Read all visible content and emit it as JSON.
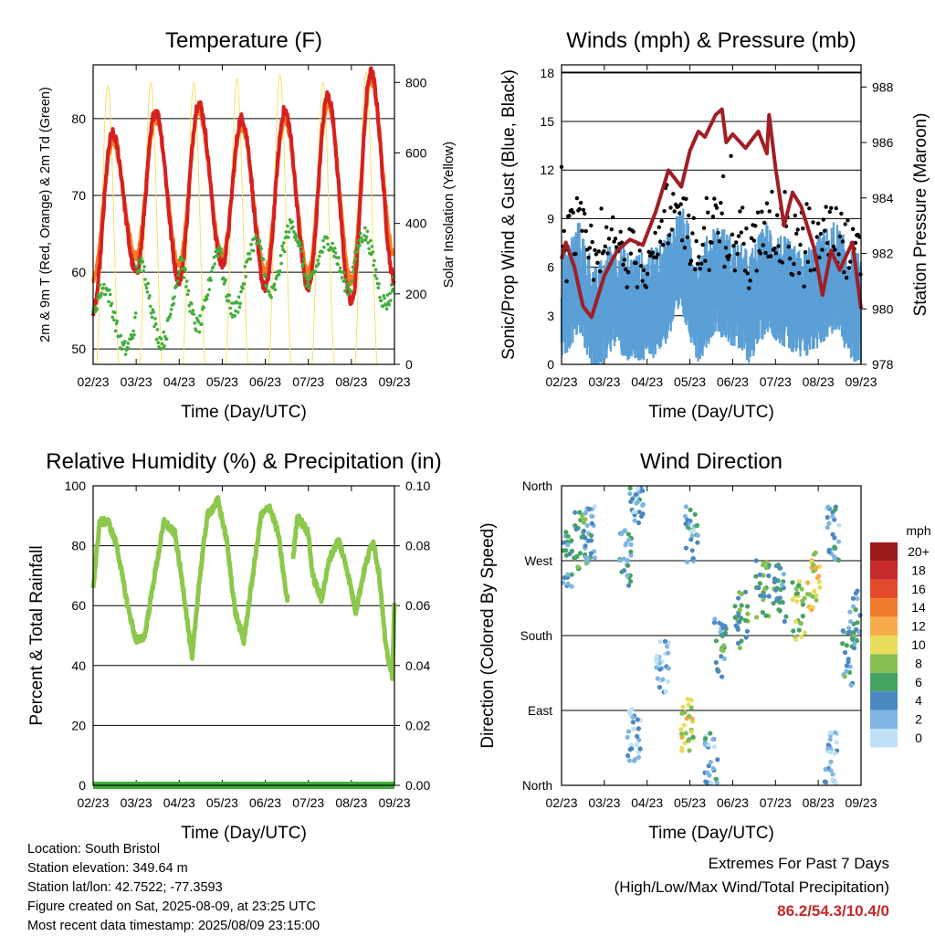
{
  "x_tick_labels": [
    "02/23",
    "03/23",
    "04/23",
    "05/23",
    "06/23",
    "07/23",
    "08/23",
    "09/23"
  ],
  "time_axis_label": "Time (Day/UTC)",
  "colors": {
    "red": "#d62020",
    "orange": "#f47c20",
    "green": "#42ae3c",
    "yellow": "#f5e06a",
    "blue": "#5a9fd6",
    "black": "#000000",
    "maroon": "#a01e24",
    "rh_green": "#8cc84b",
    "precip_green": "#3fae3a",
    "extreme_red": "#c62828"
  },
  "chart_data": [
    {
      "id": "temperature",
      "type": "line",
      "title": "Temperature (F)",
      "xlabel": "Time (Day/UTC)",
      "ylabel": "2m & 9m T (Red, Orange) & 2m Td (Green)",
      "ylabel2": "Solar Insolation (Yellow)",
      "ylim": [
        48,
        87
      ],
      "ylim2": [
        0,
        850
      ],
      "yticks": [
        50,
        60,
        70,
        80
      ],
      "yticks2": [
        0,
        200,
        400,
        600,
        800
      ],
      "grid": true,
      "x_days": [
        0,
        1,
        2,
        3,
        4,
        5,
        6,
        7
      ],
      "daily_extremes": {
        "t2m_min": [
          55,
          60,
          59,
          61,
          58,
          58,
          56,
          59
        ],
        "t2m_max": [
          78,
          81,
          82,
          80,
          81,
          83,
          86
        ],
        "t9m_min": [
          59,
          62,
          61,
          62,
          60,
          60,
          59,
          62
        ],
        "t9m_max": [
          77,
          80,
          81,
          79,
          80,
          82,
          85
        ],
        "td_range": [
          [
            50,
            58
          ],
          [
            51,
            61
          ],
          [
            53,
            63
          ],
          [
            55,
            64
          ],
          [
            57,
            66
          ],
          [
            58,
            64
          ],
          [
            56,
            65
          ]
        ],
        "solar_peak": [
          790,
          800,
          800,
          810,
          820,
          800,
          830
        ]
      },
      "series": [
        {
          "name": "2m T",
          "color": "#d62020"
        },
        {
          "name": "9m T",
          "color": "#f47c20"
        },
        {
          "name": "2m Td",
          "color": "#42ae3c"
        },
        {
          "name": "Solar Insolation",
          "color": "#f5e06a"
        }
      ]
    },
    {
      "id": "winds",
      "type": "scatter",
      "title": "Winds (mph) & Pressure (mb)",
      "xlabel": "Time (Day/UTC)",
      "ylabel": "Sonic/Prop Wind & Gust (Blue, Black)",
      "ylabel2": "Station Pressure (Maroon)",
      "ylim": [
        0,
        18.5
      ],
      "ylim2": [
        978,
        988.8
      ],
      "yticks": [
        0,
        3,
        6,
        9,
        12,
        15,
        18
      ],
      "yticks2": [
        978,
        980,
        982,
        984,
        986,
        988
      ],
      "grid": true,
      "pressure": {
        "x": [
          0,
          0.1,
          0.3,
          0.5,
          0.7,
          1.0,
          1.3,
          1.6,
          1.9,
          2.2,
          2.5,
          2.8,
          3.0,
          3.2,
          3.35,
          3.6,
          3.75,
          3.85,
          4.0,
          4.3,
          4.6,
          4.8,
          4.85,
          5.0,
          5.2,
          5.4,
          5.6,
          5.9,
          6.1,
          6.3,
          6.5,
          6.8,
          7.0
        ],
        "y": [
          981.8,
          982.4,
          981.5,
          980.1,
          979.7,
          981.2,
          982.1,
          982.5,
          982.3,
          983.5,
          985.0,
          984.4,
          985.7,
          986.4,
          986.2,
          987.0,
          987.2,
          986.0,
          986.3,
          985.8,
          986.4,
          985.6,
          987.0,
          985.1,
          983.0,
          984.2,
          983.7,
          982.2,
          980.5,
          982.1,
          981.4,
          982.4,
          980.0
        ]
      },
      "wind_profile": {
        "x": [
          0,
          0.4,
          0.8,
          1.2,
          1.6,
          2.0,
          2.4,
          2.8,
          3.2,
          3.6,
          4.0,
          4.4,
          4.8,
          5.2,
          5.6,
          6.0,
          6.4,
          6.8,
          7.0
        ],
        "y": [
          4,
          6,
          3,
          5,
          4,
          4,
          5,
          7,
          4,
          6,
          5,
          4,
          6,
          5,
          4,
          5,
          6,
          4,
          4
        ]
      },
      "series": [
        {
          "name": "Sonic/Prop Wind",
          "color": "#5a9fd6"
        },
        {
          "name": "Gust",
          "color": "#000000"
        },
        {
          "name": "Station Pressure",
          "color": "#a01e24"
        }
      ]
    },
    {
      "id": "humidity",
      "type": "line",
      "title": "Relative Humidity (%) & Precipitation (in)",
      "xlabel": "Time (Day/UTC)",
      "ylabel": "Percent & Total Rainfall",
      "ylim": [
        0,
        100
      ],
      "ylim2": [
        0,
        0.1
      ],
      "yticks": [
        0,
        20,
        40,
        60,
        80,
        100
      ],
      "yticks2_labels": [
        "0.00",
        "0.02",
        "0.04",
        "0.06",
        "0.08",
        "0.10"
      ],
      "grid": true,
      "rh": {
        "x": [
          0,
          0.15,
          0.35,
          0.55,
          0.8,
          1.0,
          1.2,
          1.45,
          1.65,
          1.9,
          2.1,
          2.3,
          2.45,
          2.65,
          2.9,
          3.1,
          3.3,
          3.5,
          3.65,
          3.9,
          4.1,
          4.3,
          4.5,
          4.6,
          4.75,
          5.0,
          5.1,
          5.3,
          5.5,
          5.7,
          5.9,
          6.1,
          6.3,
          6.5,
          6.65,
          6.8,
          6.95,
          7.0
        ],
        "y": [
          66,
          88,
          88,
          80,
          60,
          48,
          50,
          72,
          88,
          84,
          65,
          42,
          66,
          90,
          95,
          82,
          58,
          48,
          64,
          90,
          93,
          84,
          62,
          70,
          90,
          84,
          70,
          62,
          76,
          82,
          72,
          58,
          72,
          82,
          70,
          46,
          36,
          62
        ]
      },
      "precip_total": 0,
      "series": [
        {
          "name": "Relative Humidity",
          "color": "#8cc84b"
        },
        {
          "name": "Precipitation",
          "color": "#3fae3a"
        }
      ]
    },
    {
      "id": "direction",
      "type": "scatter",
      "title": "Wind Direction",
      "xlabel": "Time (Day/UTC)",
      "ylabel": "Direction (Colored By Speed)",
      "ytick_labels": [
        "North",
        "East",
        "South",
        "West",
        "North"
      ],
      "grid": true,
      "legend": {
        "position": "right",
        "title": "mph",
        "labels": [
          "20+",
          "18",
          "16",
          "14",
          "12",
          "10",
          "8",
          "6",
          "4",
          "2",
          "0"
        ],
        "colors": [
          "#9b1b1b",
          "#c62a2a",
          "#e34a2c",
          "#f07a2c",
          "#f6ab4a",
          "#e8dc5a",
          "#86c052",
          "#44a362",
          "#4a88c2",
          "#7fb5e2",
          "#bfe1f6"
        ]
      },
      "clusters": [
        {
          "x": 0.1,
          "deg": 270,
          "spd": 4
        },
        {
          "x": 0.45,
          "deg": 295,
          "spd": 6
        },
        {
          "x": 0.7,
          "deg": 300,
          "spd": 3
        },
        {
          "x": 1.5,
          "deg": 275,
          "spd": 4
        },
        {
          "x": 1.75,
          "deg": 350,
          "spd": 3
        },
        {
          "x": 1.7,
          "deg": 60,
          "spd": 2
        },
        {
          "x": 2.35,
          "deg": 145,
          "spd": 2
        },
        {
          "x": 2.95,
          "deg": 70,
          "spd": 9
        },
        {
          "x": 3.05,
          "deg": 300,
          "spd": 3
        },
        {
          "x": 3.5,
          "deg": 30,
          "spd": 3
        },
        {
          "x": 3.7,
          "deg": 165,
          "spd": 5
        },
        {
          "x": 4.2,
          "deg": 200,
          "spd": 6
        },
        {
          "x": 4.7,
          "deg": 235,
          "spd": 6
        },
        {
          "x": 5.1,
          "deg": 230,
          "spd": 5
        },
        {
          "x": 5.55,
          "deg": 210,
          "spd": 8
        },
        {
          "x": 5.9,
          "deg": 245,
          "spd": 10
        },
        {
          "x": 6.35,
          "deg": 305,
          "spd": 3
        },
        {
          "x": 6.7,
          "deg": 155,
          "spd": 5
        },
        {
          "x": 6.9,
          "deg": 200,
          "spd": 4
        },
        {
          "x": 6.3,
          "deg": 30,
          "spd": 2
        }
      ],
      "series": [
        {
          "name": "Wind Direction",
          "color": "#4a88c2"
        }
      ]
    }
  ],
  "info": {
    "location": "Location: South Bristol",
    "elevation": "Station elevation: 349.64 m",
    "latlon": "Station lat/lon: 42.7522; -77.3593",
    "created": "Figure created on Sat, 2025-08-09, at 23:25 UTC",
    "recent": "Most recent data timestamp: 2025/08/09 23:15:00"
  },
  "extremes": {
    "title": "Extremes For Past 7 Days",
    "subtitle": "(High/Low/Max Wind/Total Precipitation)",
    "value": "86.2/54.3/10.4/0"
  }
}
